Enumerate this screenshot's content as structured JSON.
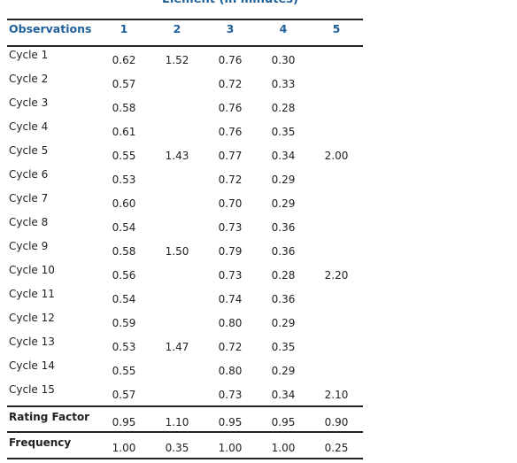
{
  "caption": "Element (in minutes)",
  "header": {
    "label": "Observations",
    "cols": [
      "1",
      "2",
      "3",
      "4",
      "5"
    ]
  },
  "rows": [
    {
      "label": "Cycle 1",
      "values": [
        "0.62",
        "1.52",
        "0.76",
        "0.30",
        ""
      ]
    },
    {
      "label": "Cycle 2",
      "values": [
        "0.57",
        "",
        "0.72",
        "0.33",
        ""
      ]
    },
    {
      "label": "Cycle 3",
      "values": [
        "0.58",
        "",
        "0.76",
        "0.28",
        ""
      ]
    },
    {
      "label": "Cycle 4",
      "values": [
        "0.61",
        "",
        "0.76",
        "0.35",
        ""
      ]
    },
    {
      "label": "Cycle 5",
      "values": [
        "0.55",
        "1.43",
        "0.77",
        "0.34",
        "2.00"
      ]
    },
    {
      "label": "Cycle 6",
      "values": [
        "0.53",
        "",
        "0.72",
        "0.29",
        ""
      ]
    },
    {
      "label": "Cycle 7",
      "values": [
        "0.60",
        "",
        "0.70",
        "0.29",
        ""
      ]
    },
    {
      "label": "Cycle 8",
      "values": [
        "0.54",
        "",
        "0.73",
        "0.36",
        ""
      ]
    },
    {
      "label": "Cycle 9",
      "values": [
        "0.58",
        "1.50",
        "0.79",
        "0.36",
        ""
      ]
    },
    {
      "label": "Cycle 10",
      "values": [
        "0.56",
        "",
        "0.73",
        "0.28",
        "2.20"
      ]
    },
    {
      "label": "Cycle 11",
      "values": [
        "0.54",
        "",
        "0.74",
        "0.36",
        ""
      ]
    },
    {
      "label": "Cycle 12",
      "values": [
        "0.59",
        "",
        "0.80",
        "0.29",
        ""
      ]
    },
    {
      "label": "Cycle 13",
      "values": [
        "0.53",
        "1.47",
        "0.72",
        "0.35",
        ""
      ]
    },
    {
      "label": "Cycle 14",
      "values": [
        "0.55",
        "",
        "0.80",
        "0.29",
        ""
      ]
    },
    {
      "label": "Cycle 15",
      "values": [
        "0.57",
        "",
        "0.73",
        "0.34",
        "2.10"
      ]
    }
  ],
  "footer": [
    {
      "label": "Rating Factor",
      "values": [
        "0.95",
        "1.10",
        "0.95",
        "0.95",
        "0.90"
      ]
    },
    {
      "label": "Frequency",
      "values": [
        "1.00",
        "0.35",
        "1.00",
        "1.00",
        "0.25"
      ]
    }
  ]
}
